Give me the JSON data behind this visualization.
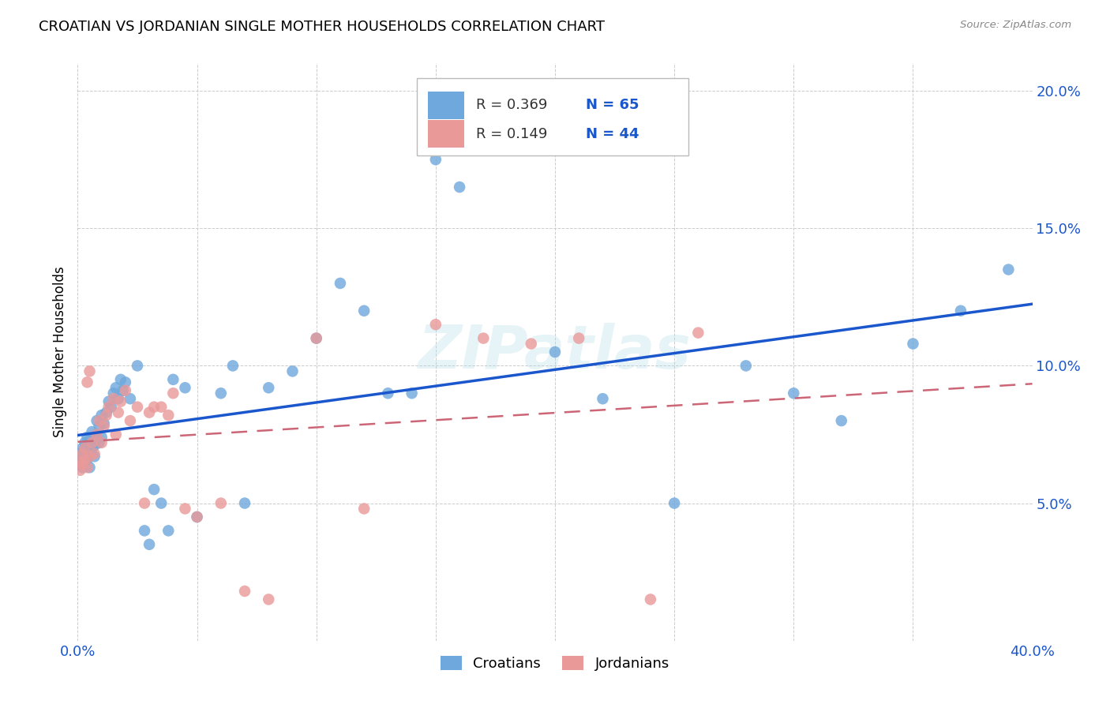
{
  "title": "CROATIAN VS JORDANIAN SINGLE MOTHER HOUSEHOLDS CORRELATION CHART",
  "source": "Source: ZipAtlas.com",
  "ylabel": "Single Mother Households",
  "xlim": [
    0.0,
    0.4
  ],
  "ylim": [
    0.0,
    0.21
  ],
  "xticks": [
    0.0,
    0.05,
    0.1,
    0.15,
    0.2,
    0.25,
    0.3,
    0.35,
    0.4
  ],
  "yticks": [
    0.0,
    0.05,
    0.1,
    0.15,
    0.2
  ],
  "croatian_color": "#6fa8dc",
  "jordanian_color": "#ea9999",
  "croatian_line_color": "#1a56cc",
  "jordanian_line_color": "#cc6677",
  "watermark": "ZIPatlas",
  "legend_r_croatian": "0.369",
  "legend_n_croatian": "65",
  "legend_r_jordanian": "0.149",
  "legend_n_jordanian": "44",
  "croatian_x": [
    0.001,
    0.001,
    0.002,
    0.002,
    0.002,
    0.003,
    0.003,
    0.003,
    0.004,
    0.004,
    0.004,
    0.005,
    0.005,
    0.005,
    0.006,
    0.006,
    0.007,
    0.007,
    0.008,
    0.008,
    0.009,
    0.009,
    0.01,
    0.01,
    0.011,
    0.012,
    0.013,
    0.014,
    0.015,
    0.016,
    0.017,
    0.018,
    0.019,
    0.02,
    0.022,
    0.025,
    0.028,
    0.03,
    0.032,
    0.035,
    0.038,
    0.04,
    0.045,
    0.05,
    0.06,
    0.065,
    0.07,
    0.08,
    0.09,
    0.1,
    0.11,
    0.12,
    0.13,
    0.14,
    0.15,
    0.16,
    0.2,
    0.22,
    0.25,
    0.28,
    0.3,
    0.32,
    0.35,
    0.37,
    0.39
  ],
  "croatian_y": [
    0.068,
    0.064,
    0.066,
    0.063,
    0.07,
    0.065,
    0.067,
    0.072,
    0.066,
    0.069,
    0.074,
    0.063,
    0.068,
    0.073,
    0.07,
    0.076,
    0.067,
    0.071,
    0.075,
    0.08,
    0.072,
    0.078,
    0.074,
    0.082,
    0.079,
    0.083,
    0.087,
    0.085,
    0.09,
    0.092,
    0.088,
    0.095,
    0.091,
    0.094,
    0.088,
    0.1,
    0.04,
    0.035,
    0.055,
    0.05,
    0.04,
    0.095,
    0.092,
    0.045,
    0.09,
    0.1,
    0.05,
    0.092,
    0.098,
    0.11,
    0.13,
    0.12,
    0.09,
    0.09,
    0.175,
    0.165,
    0.105,
    0.088,
    0.05,
    0.1,
    0.09,
    0.08,
    0.108,
    0.12,
    0.135
  ],
  "jordanian_x": [
    0.001,
    0.001,
    0.002,
    0.002,
    0.003,
    0.003,
    0.004,
    0.004,
    0.005,
    0.005,
    0.006,
    0.007,
    0.008,
    0.009,
    0.01,
    0.011,
    0.012,
    0.013,
    0.015,
    0.016,
    0.017,
    0.018,
    0.02,
    0.022,
    0.025,
    0.028,
    0.03,
    0.032,
    0.035,
    0.038,
    0.04,
    0.045,
    0.05,
    0.06,
    0.07,
    0.08,
    0.1,
    0.12,
    0.15,
    0.17,
    0.19,
    0.21,
    0.24,
    0.26
  ],
  "jordanian_y": [
    0.065,
    0.062,
    0.068,
    0.064,
    0.066,
    0.07,
    0.063,
    0.094,
    0.067,
    0.098,
    0.072,
    0.068,
    0.075,
    0.08,
    0.072,
    0.078,
    0.082,
    0.085,
    0.088,
    0.075,
    0.083,
    0.087,
    0.091,
    0.08,
    0.085,
    0.05,
    0.083,
    0.085,
    0.085,
    0.082,
    0.09,
    0.048,
    0.045,
    0.05,
    0.018,
    0.015,
    0.11,
    0.048,
    0.115,
    0.11,
    0.108,
    0.11,
    0.015,
    0.112
  ]
}
